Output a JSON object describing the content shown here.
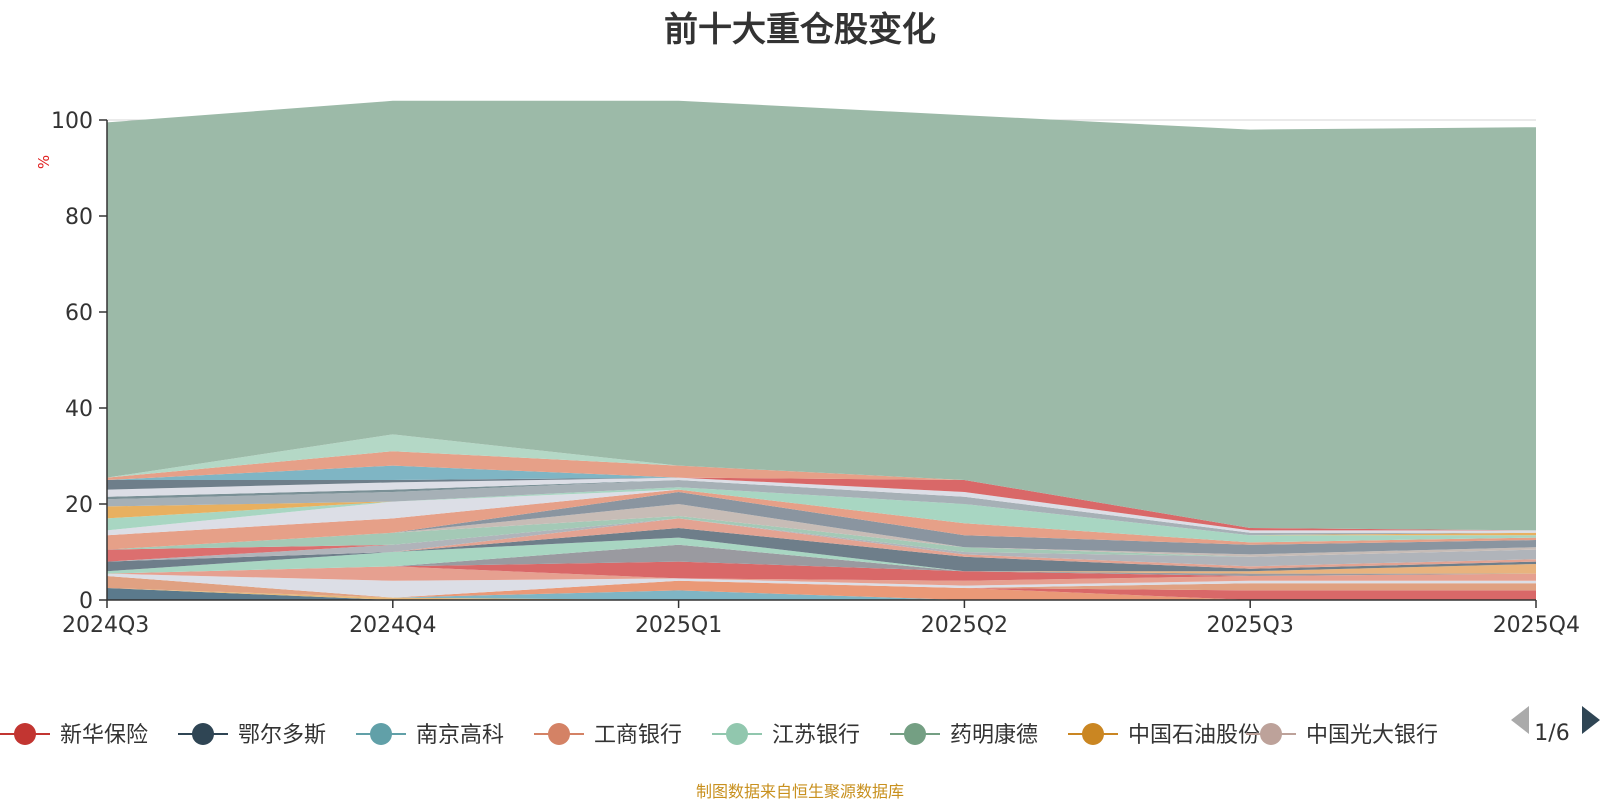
{
  "chart_data": {
    "type": "area",
    "stacked": true,
    "title": "前十大重仓股变化",
    "ylabel": "%",
    "ylim": [
      0,
      100
    ],
    "yticks": [
      0,
      20,
      40,
      60,
      80,
      100
    ],
    "grid": true,
    "legend_position": "bottom",
    "categories": [
      "2024Q3",
      "2024Q4",
      "2025Q1",
      "2025Q2",
      "2025Q3",
      "2025Q4"
    ],
    "legend_items": [
      "新华保险",
      "鄂尔多斯",
      "南京高科",
      "工商银行",
      "江苏银行",
      "药明康德",
      "中国石油股份",
      "中国光大银行"
    ],
    "legend_page": "1/6",
    "series": [
      {
        "name": "",
        "color": "#5b7a8c",
        "values": [
          2.5,
          0.0,
          0.0,
          0.0,
          0.0,
          0.0
        ]
      },
      {
        "name": "",
        "color": "#e6b87a",
        "values": [
          0.0,
          0.5,
          0.0,
          0.0,
          0.0,
          0.0
        ]
      },
      {
        "name": "",
        "color": "#7fb5c4",
        "values": [
          0.0,
          0.0,
          2.0,
          0.0,
          0.0,
          0.0
        ]
      },
      {
        "name": "",
        "color": "#ea9977",
        "values": [
          0.0,
          0.0,
          2.0,
          2.5,
          0.0,
          0.0
        ]
      },
      {
        "name": "",
        "color": "#d96868",
        "values": [
          0.0,
          0.0,
          0.0,
          0.0,
          2.0,
          2.0
        ]
      },
      {
        "name": "",
        "color": "#e0a182",
        "values": [
          2.5,
          0.0,
          0.0,
          0.0,
          1.5,
          1.5
        ]
      },
      {
        "name": "",
        "color": "#dcdee6",
        "values": [
          0.5,
          3.5,
          0.5,
          0.5,
          0.5,
          0.5
        ]
      },
      {
        "name": "",
        "color": "#e6a090",
        "values": [
          0.0,
          3.0,
          0.0,
          1.0,
          1.0,
          1.5
        ]
      },
      {
        "name": "",
        "color": "#d96868",
        "values": [
          0.0,
          0.0,
          3.5,
          2.0,
          0.0,
          0.0
        ]
      },
      {
        "name": "",
        "color": "#9a9aa0",
        "values": [
          0.0,
          0.0,
          3.5,
          0.0,
          0.5,
          0.0
        ]
      },
      {
        "name": "",
        "color": "#a8d6c2",
        "values": [
          0.5,
          3.0,
          1.5,
          0.0,
          0.0,
          0.0
        ]
      },
      {
        "name": "",
        "color": "#e8b37e",
        "values": [
          0.0,
          0.0,
          0.0,
          0.0,
          0.5,
          2.0
        ]
      },
      {
        "name": "",
        "color": "#6e7e8a",
        "values": [
          2.0,
          0.0,
          2.0,
          3.0,
          0.5,
          0.5
        ]
      },
      {
        "name": "",
        "color": "#e3a392",
        "values": [
          0.0,
          0.0,
          2.0,
          0.5,
          0.5,
          0.5
        ]
      },
      {
        "name": "",
        "color": "#b0b4ba",
        "values": [
          0.0,
          1.5,
          0.0,
          0.5,
          2.0,
          2.0
        ]
      },
      {
        "name": "",
        "color": "#dc6f6f",
        "values": [
          2.5,
          0.0,
          0.0,
          0.0,
          0.0,
          0.0
        ]
      },
      {
        "name": "",
        "color": "#a4c9b6",
        "values": [
          0.0,
          2.5,
          0.5,
          1.0,
          0.0,
          0.0
        ]
      },
      {
        "name": "",
        "color": "#c7bcb6",
        "values": [
          0.0,
          0.0,
          2.5,
          0.0,
          0.5,
          0.5
        ]
      },
      {
        "name": "",
        "color": "#8a95a0",
        "values": [
          0.0,
          0.0,
          2.5,
          2.5,
          2.0,
          1.5
        ]
      },
      {
        "name": "",
        "color": "#e6a088",
        "values": [
          3.0,
          3.0,
          0.5,
          2.5,
          0.5,
          0.5
        ]
      },
      {
        "name": "",
        "color": "#dcdee6",
        "values": [
          1.0,
          3.5,
          0.0,
          0.0,
          0.0,
          0.0
        ]
      },
      {
        "name": "",
        "color": "#a8d6c2",
        "values": [
          2.5,
          0.0,
          0.5,
          4.0,
          1.5,
          0.5
        ]
      },
      {
        "name": "",
        "color": "#e8b060",
        "values": [
          2.5,
          0.0,
          0.0,
          0.0,
          0.0,
          0.5
        ]
      },
      {
        "name": "",
        "color": "#a6b0b6",
        "values": [
          1.5,
          2.0,
          1.5,
          1.5,
          0.5,
          0.0
        ]
      },
      {
        "name": "",
        "color": "#7a9096",
        "values": [
          0.5,
          0.5,
          0.0,
          0.0,
          0.0,
          0.0
        ]
      },
      {
        "name": "",
        "color": "#dcdee6",
        "values": [
          1.5,
          1.5,
          0.5,
          1.0,
          0.5,
          0.5
        ]
      },
      {
        "name": "",
        "color": "#d96868",
        "values": [
          0.0,
          0.0,
          0.0,
          2.5,
          0.5,
          0.0
        ]
      },
      {
        "name": "",
        "color": "#6e7e8a",
        "values": [
          2.0,
          0.5,
          0.0,
          0.0,
          0.0,
          0.0
        ]
      },
      {
        "name": "",
        "color": "#7fb5c4",
        "values": [
          0.0,
          3.0,
          0.0,
          0.0,
          0.0,
          0.0
        ]
      },
      {
        "name": "",
        "color": "#e6a088",
        "values": [
          0.5,
          3.0,
          2.5,
          0.0,
          0.0,
          0.0
        ]
      },
      {
        "name": "",
        "color": "#b4d8c6",
        "values": [
          0.0,
          3.5,
          0.0,
          0.0,
          0.0,
          0.0
        ]
      },
      {
        "name": "",
        "color": "#9cbaa8",
        "values": [
          74.0,
          69.5,
          76.0,
          76.0,
          83.0,
          84.0
        ]
      }
    ]
  },
  "legend_colors": [
    "#c23531",
    "#2f4554",
    "#61a0a8",
    "#d48265",
    "#91c7ae",
    "#749f83",
    "#ca8622",
    "#bda29a"
  ],
  "footer": {
    "note": "制图数据来自恒生聚源数据库"
  }
}
